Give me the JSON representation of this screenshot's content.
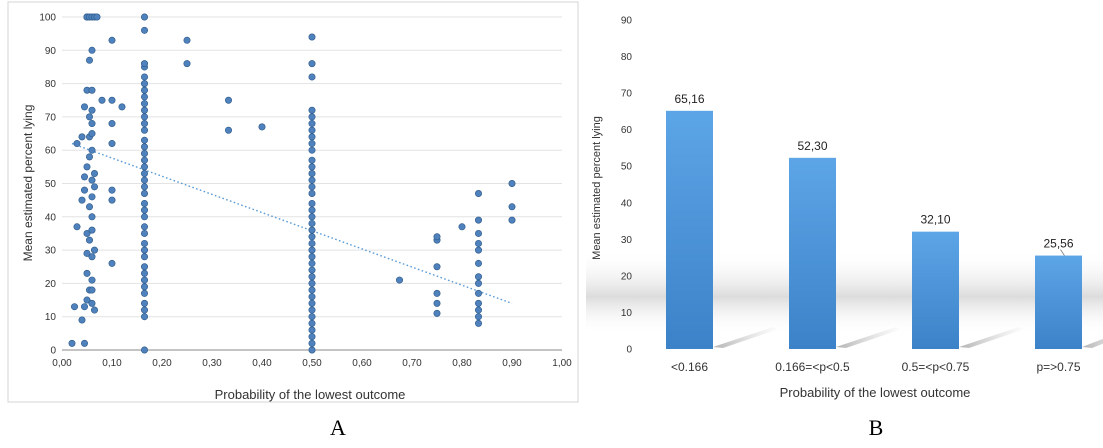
{
  "panel_labels": [
    "A",
    "B"
  ],
  "colors": {
    "point": "#4f81bd",
    "point_stroke": "#2c5987",
    "trend": "#5b9bd5",
    "bar": "#4b94d6",
    "grid": "#e3e3e3",
    "axis_text": "#333333"
  },
  "chart_data": [
    {
      "type": "scatter",
      "panel": "A",
      "xlabel": "Probability of the lowest outcome",
      "ylabel": "Mean estimated percent lying",
      "xlim": [
        0,
        1
      ],
      "ylim": [
        0,
        100
      ],
      "xticks": [
        0,
        0.1,
        0.2,
        0.3,
        0.4,
        0.5,
        0.6,
        0.7,
        0.8,
        0.9,
        1.0
      ],
      "xtick_labels": [
        "0,00",
        "0,10",
        "0,20",
        "0,30",
        "0,40",
        "0,50",
        "0,60",
        "0,70",
        "0,80",
        "0,90",
        "1,00"
      ],
      "yticks": [
        0,
        10,
        20,
        30,
        40,
        50,
        60,
        70,
        80,
        90,
        100
      ],
      "ytick_labels": [
        "0",
        "10",
        "20",
        "30",
        "40",
        "50",
        "60",
        "70",
        "80",
        "90",
        "100"
      ],
      "grid": "horizontal",
      "trendline": {
        "x": [
          0.02,
          0.9
        ],
        "y": [
          62,
          14
        ],
        "style": "dotted"
      },
      "points": [
        [
          0.02,
          2
        ],
        [
          0.025,
          13
        ],
        [
          0.03,
          37
        ],
        [
          0.03,
          62
        ],
        [
          0.04,
          9
        ],
        [
          0.04,
          45
        ],
        [
          0.04,
          64
        ],
        [
          0.045,
          2
        ],
        [
          0.045,
          13
        ],
        [
          0.045,
          48
        ],
        [
          0.045,
          52
        ],
        [
          0.045,
          73
        ],
        [
          0.05,
          35
        ],
        [
          0.05,
          23
        ],
        [
          0.05,
          15
        ],
        [
          0.05,
          29
        ],
        [
          0.05,
          78
        ],
        [
          0.05,
          100
        ],
        [
          0.05,
          100
        ],
        [
          0.05,
          100
        ],
        [
          0.05,
          55
        ],
        [
          0.055,
          18
        ],
        [
          0.055,
          33
        ],
        [
          0.055,
          43
        ],
        [
          0.055,
          58
        ],
        [
          0.055,
          64
        ],
        [
          0.055,
          70
        ],
        [
          0.055,
          87
        ],
        [
          0.055,
          100
        ],
        [
          0.06,
          14
        ],
        [
          0.06,
          18
        ],
        [
          0.06,
          21
        ],
        [
          0.06,
          28
        ],
        [
          0.06,
          36
        ],
        [
          0.06,
          40
        ],
        [
          0.06,
          46
        ],
        [
          0.06,
          51
        ],
        [
          0.06,
          60
        ],
        [
          0.06,
          65
        ],
        [
          0.06,
          68
        ],
        [
          0.06,
          72
        ],
        [
          0.06,
          78
        ],
        [
          0.06,
          90
        ],
        [
          0.06,
          100
        ],
        [
          0.065,
          12
        ],
        [
          0.065,
          30
        ],
        [
          0.065,
          49
        ],
        [
          0.065,
          53
        ],
        [
          0.065,
          100
        ],
        [
          0.07,
          100
        ],
        [
          0.08,
          75
        ],
        [
          0.1,
          26
        ],
        [
          0.1,
          45
        ],
        [
          0.1,
          48
        ],
        [
          0.1,
          62
        ],
        [
          0.1,
          68
        ],
        [
          0.1,
          75
        ],
        [
          0.1,
          93
        ],
        [
          0.12,
          73
        ],
        [
          0.165,
          0
        ],
        [
          0.165,
          10
        ],
        [
          0.165,
          12
        ],
        [
          0.165,
          14
        ],
        [
          0.165,
          17
        ],
        [
          0.165,
          19
        ],
        [
          0.165,
          21
        ],
        [
          0.165,
          23
        ],
        [
          0.165,
          25
        ],
        [
          0.165,
          28
        ],
        [
          0.165,
          30
        ],
        [
          0.165,
          32
        ],
        [
          0.165,
          35
        ],
        [
          0.165,
          37
        ],
        [
          0.165,
          40
        ],
        [
          0.165,
          42
        ],
        [
          0.165,
          44
        ],
        [
          0.165,
          47
        ],
        [
          0.165,
          49
        ],
        [
          0.165,
          51
        ],
        [
          0.165,
          53
        ],
        [
          0.165,
          55
        ],
        [
          0.165,
          57
        ],
        [
          0.165,
          59
        ],
        [
          0.165,
          61
        ],
        [
          0.165,
          63
        ],
        [
          0.165,
          66
        ],
        [
          0.165,
          68
        ],
        [
          0.165,
          70
        ],
        [
          0.165,
          72
        ],
        [
          0.165,
          74
        ],
        [
          0.165,
          76
        ],
        [
          0.165,
          78
        ],
        [
          0.165,
          80
        ],
        [
          0.165,
          82
        ],
        [
          0.165,
          85
        ],
        [
          0.165,
          86
        ],
        [
          0.165,
          96
        ],
        [
          0.165,
          100
        ],
        [
          0.25,
          86
        ],
        [
          0.25,
          93
        ],
        [
          0.333,
          66
        ],
        [
          0.333,
          75
        ],
        [
          0.4,
          67
        ],
        [
          0.5,
          0
        ],
        [
          0.5,
          2
        ],
        [
          0.5,
          4
        ],
        [
          0.5,
          6
        ],
        [
          0.5,
          8
        ],
        [
          0.5,
          10
        ],
        [
          0.5,
          12
        ],
        [
          0.5,
          14
        ],
        [
          0.5,
          16
        ],
        [
          0.5,
          18
        ],
        [
          0.5,
          20
        ],
        [
          0.5,
          22
        ],
        [
          0.5,
          24
        ],
        [
          0.5,
          26
        ],
        [
          0.5,
          28
        ],
        [
          0.5,
          30
        ],
        [
          0.5,
          32
        ],
        [
          0.5,
          34
        ],
        [
          0.5,
          36
        ],
        [
          0.5,
          38
        ],
        [
          0.5,
          40
        ],
        [
          0.5,
          42
        ],
        [
          0.5,
          44
        ],
        [
          0.5,
          47
        ],
        [
          0.5,
          49
        ],
        [
          0.5,
          51
        ],
        [
          0.5,
          53
        ],
        [
          0.5,
          55
        ],
        [
          0.5,
          57
        ],
        [
          0.5,
          60
        ],
        [
          0.5,
          62
        ],
        [
          0.5,
          64
        ],
        [
          0.5,
          66
        ],
        [
          0.5,
          68
        ],
        [
          0.5,
          70
        ],
        [
          0.5,
          72
        ],
        [
          0.5,
          82
        ],
        [
          0.5,
          86
        ],
        [
          0.5,
          94
        ],
        [
          0.675,
          21
        ],
        [
          0.75,
          11
        ],
        [
          0.75,
          14
        ],
        [
          0.75,
          17
        ],
        [
          0.75,
          25
        ],
        [
          0.75,
          33
        ],
        [
          0.75,
          34
        ],
        [
          0.8,
          37
        ],
        [
          0.833,
          8
        ],
        [
          0.833,
          10
        ],
        [
          0.833,
          12
        ],
        [
          0.833,
          14
        ],
        [
          0.833,
          17
        ],
        [
          0.833,
          20
        ],
        [
          0.833,
          22
        ],
        [
          0.833,
          26
        ],
        [
          0.833,
          30
        ],
        [
          0.833,
          32
        ],
        [
          0.833,
          35
        ],
        [
          0.833,
          39
        ],
        [
          0.833,
          47
        ],
        [
          0.9,
          39
        ],
        [
          0.9,
          43
        ],
        [
          0.9,
          50
        ]
      ]
    },
    {
      "type": "bar",
      "panel": "B",
      "xlabel": "Probability of the lowest outcome",
      "ylabel": "Mean  estimated percent lying",
      "categories": [
        "<0.166",
        "0.166=<p<0.5",
        "0.5=<p<0.75",
        "p=>0.75"
      ],
      "values": [
        65.16,
        52.3,
        32.1,
        25.56
      ],
      "value_labels": [
        "65,16",
        "52,30",
        "32,10",
        "25,56"
      ],
      "ylim": [
        0,
        90
      ],
      "yticks": [
        0,
        10,
        20,
        30,
        40,
        50,
        60,
        70,
        80,
        90
      ],
      "ytick_labels": [
        "0",
        "10",
        "20",
        "30",
        "40",
        "50",
        "60",
        "70",
        "80",
        "90"
      ],
      "grid": false
    }
  ]
}
